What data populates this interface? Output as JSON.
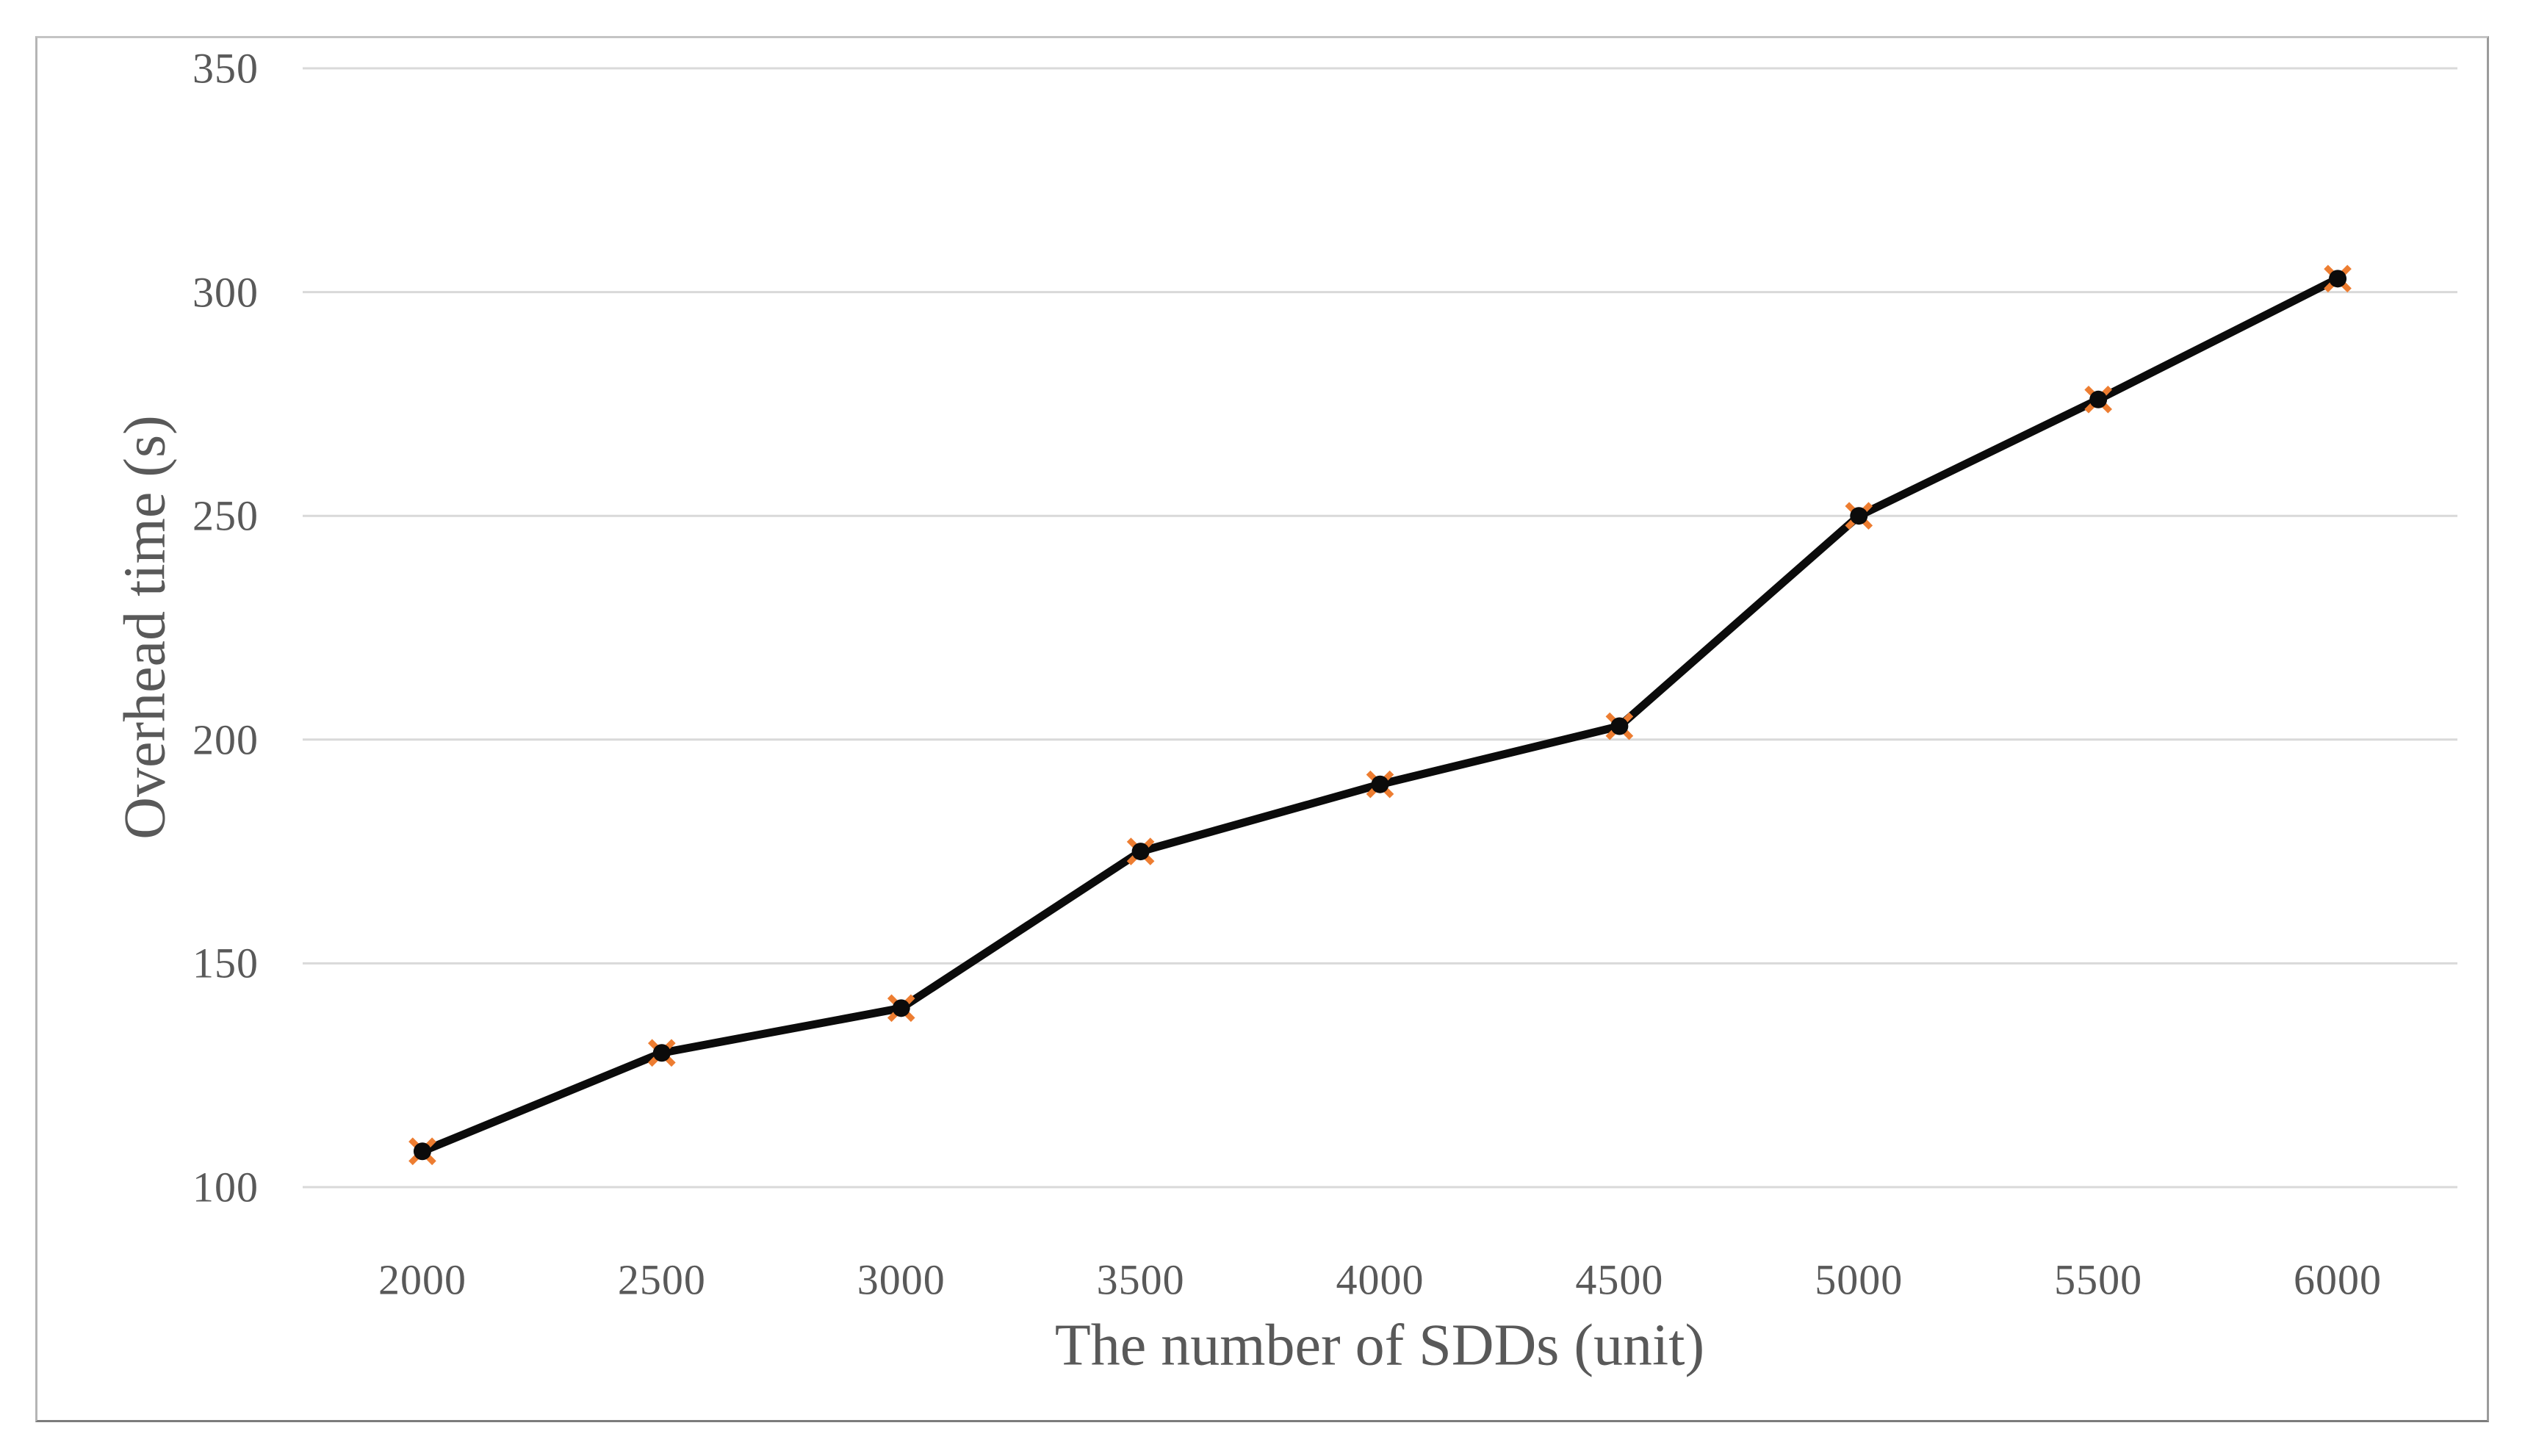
{
  "chart_data": {
    "type": "line",
    "title": "",
    "xlabel": "The number of SDDs (unit)",
    "ylabel": "Overhead time (s)",
    "categories": [
      "2000",
      "2500",
      "3000",
      "3500",
      "4000",
      "4500",
      "5000",
      "5500",
      "6000"
    ],
    "series": [
      {
        "name": "Overhead time",
        "values": [
          108,
          130,
          140,
          175,
          190,
          203,
          250,
          276,
          303
        ]
      }
    ],
    "x": [
      2000,
      2500,
      3000,
      3500,
      4000,
      4500,
      5000,
      5500,
      6000
    ],
    "ylim": [
      100,
      350
    ],
    "ytick_step": 50,
    "yticks": [
      "100",
      "150",
      "200",
      "250",
      "300",
      "350"
    ],
    "grid": "horizontal",
    "legend": "none",
    "marker": "black-dot-over-orange-x",
    "colors": {
      "line": "#0b0b0b",
      "marker_dot": "#0b0b0b",
      "marker_cross": "#ED7D31",
      "gridline": "#d9d9d9",
      "axis_text": "#595959",
      "frame_border": "#9b9b9b",
      "background": "#ffffff"
    }
  }
}
